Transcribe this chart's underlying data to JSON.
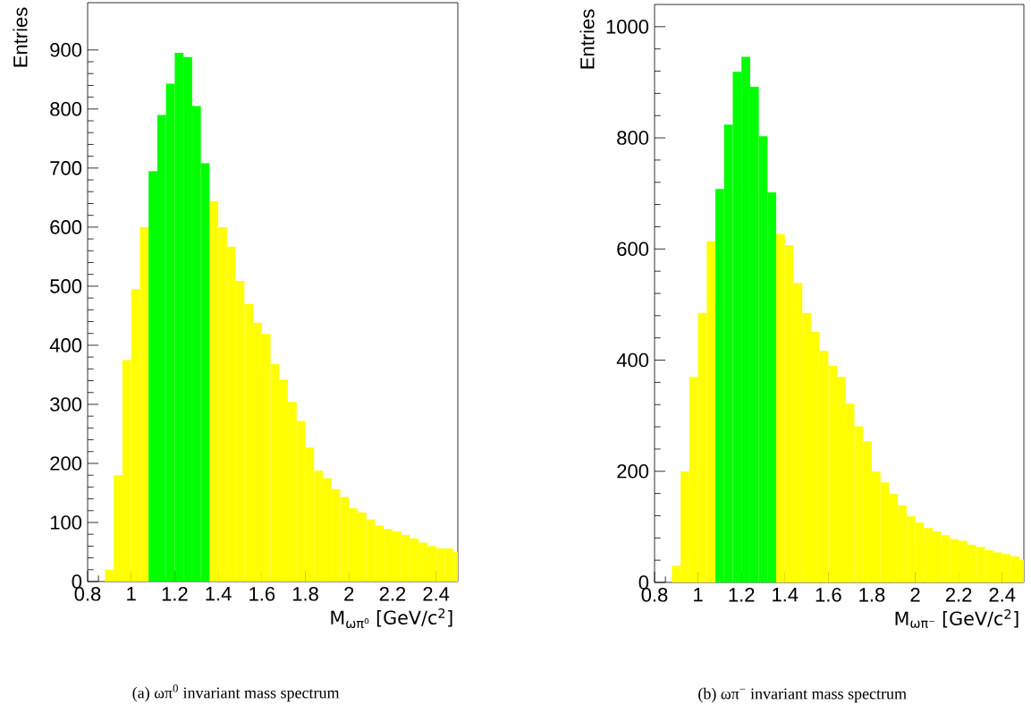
{
  "chart_data": [
    {
      "type": "histogram",
      "xlabel": "M$_{ωπ⁰}$ [GeV/c$^{2}$]",
      "ylabel": "Entries",
      "annotations": [
        "(a) ωπ$^{0}$ invariant mass spectrum"
      ],
      "bins": [
        0.88,
        0.92,
        0.96,
        1.0,
        1.04,
        1.08,
        1.12,
        1.16,
        1.2,
        1.24,
        1.28,
        1.32,
        1.36,
        1.4,
        1.44,
        1.48,
        1.52,
        1.56,
        1.6,
        1.64,
        1.68,
        1.72,
        1.76,
        1.8,
        1.84,
        1.88,
        1.92,
        1.96,
        2.0,
        2.04,
        2.08,
        2.12,
        2.16,
        2.2,
        2.24,
        2.28,
        2.32,
        2.36,
        2.4,
        2.44,
        2.48,
        2.5
      ],
      "values": [
        20,
        180,
        375,
        495,
        600,
        695,
        790,
        843,
        895,
        888,
        805,
        708,
        644,
        600,
        567,
        509,
        470,
        438,
        419,
        368,
        342,
        304,
        272,
        227,
        188,
        175,
        156,
        143,
        124,
        117,
        105,
        95,
        89,
        85,
        79,
        73,
        66,
        60,
        56,
        56,
        50
      ],
      "colors": [
        "#ffff00",
        "#ffff00",
        "#ffff00",
        "#ffff00",
        "#ffff00",
        "#00ff00",
        "#00ff00",
        "#00ff00",
        "#00ff00",
        "#00ff00",
        "#00ff00",
        "#00ff00",
        "#ffff00",
        "#ffff00",
        "#ffff00",
        "#ffff00",
        "#ffff00",
        "#ffff00",
        "#ffff00",
        "#ffff00",
        "#ffff00",
        "#ffff00",
        "#ffff00",
        "#ffff00",
        "#ffff00",
        "#ffff00",
        "#ffff00",
        "#ffff00",
        "#ffff00",
        "#ffff00",
        "#ffff00",
        "#ffff00",
        "#ffff00",
        "#ffff00",
        "#ffff00",
        "#ffff00",
        "#ffff00",
        "#ffff00",
        "#ffff00",
        "#ffff00",
        "#ffff00"
      ],
      "xlim": [
        0.8,
        2.5
      ],
      "ylim": [
        0,
        980
      ],
      "xticks": [
        0.8,
        1,
        1.2,
        1.4,
        1.6,
        1.8,
        2,
        2.2,
        2.4
      ],
      "yticks": [
        0,
        100,
        200,
        300,
        400,
        500,
        600,
        700,
        800,
        900
      ]
    },
    {
      "type": "histogram",
      "xlabel": "M$_{ωπ⁻}$ [GeV/c$^{2}$]",
      "ylabel": "Entries",
      "annotations": [
        "(b) ωπ$^{−}$ invariant mass spectrum"
      ],
      "bins": [
        0.88,
        0.92,
        0.96,
        1.0,
        1.04,
        1.08,
        1.12,
        1.16,
        1.2,
        1.24,
        1.28,
        1.32,
        1.36,
        1.4,
        1.44,
        1.48,
        1.52,
        1.56,
        1.6,
        1.64,
        1.68,
        1.72,
        1.76,
        1.8,
        1.84,
        1.88,
        1.92,
        1.96,
        2.0,
        2.04,
        2.08,
        2.12,
        2.16,
        2.2,
        2.24,
        2.28,
        2.32,
        2.36,
        2.4,
        2.44,
        2.48,
        2.5
      ],
      "values": [
        30,
        200,
        370,
        485,
        614,
        708,
        824,
        919,
        946,
        892,
        803,
        702,
        627,
        607,
        539,
        485,
        451,
        417,
        390,
        370,
        322,
        281,
        254,
        200,
        180,
        159,
        139,
        119,
        108,
        98,
        92,
        85,
        78,
        75,
        68,
        64,
        58,
        54,
        51,
        47,
        41
      ],
      "colors": [
        "#ffff00",
        "#ffff00",
        "#ffff00",
        "#ffff00",
        "#ffff00",
        "#00ff00",
        "#00ff00",
        "#00ff00",
        "#00ff00",
        "#00ff00",
        "#00ff00",
        "#00ff00",
        "#ffff00",
        "#ffff00",
        "#ffff00",
        "#ffff00",
        "#ffff00",
        "#ffff00",
        "#ffff00",
        "#ffff00",
        "#ffff00",
        "#ffff00",
        "#ffff00",
        "#ffff00",
        "#ffff00",
        "#ffff00",
        "#ffff00",
        "#ffff00",
        "#ffff00",
        "#ffff00",
        "#ffff00",
        "#ffff00",
        "#ffff00",
        "#ffff00",
        "#ffff00",
        "#ffff00",
        "#ffff00",
        "#ffff00",
        "#ffff00",
        "#ffff00",
        "#ffff00"
      ],
      "xlim": [
        0.8,
        2.5
      ],
      "ylim": [
        0,
        1040
      ],
      "xticks": [
        0.8,
        1,
        1.2,
        1.4,
        1.6,
        1.8,
        2,
        2.2,
        2.4
      ],
      "yticks": [
        0,
        200,
        400,
        600,
        800,
        1000
      ]
    }
  ]
}
